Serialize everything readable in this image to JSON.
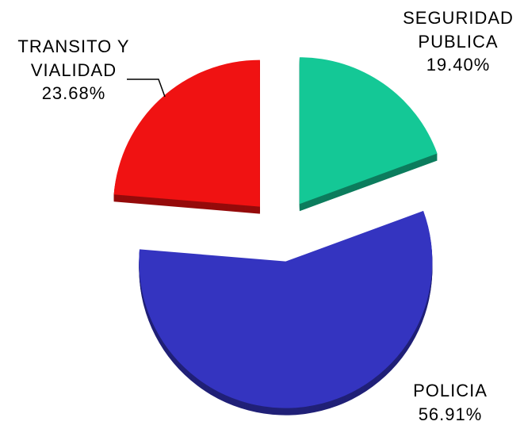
{
  "chart_data": {
    "type": "pie",
    "categories": [
      "SEGURIDAD PUBLICA",
      "POLICIA",
      "TRANSITO Y VIALIDAD"
    ],
    "values": [
      19.4,
      56.91,
      23.68
    ],
    "value_labels": [
      "19.40%",
      "56.91%",
      "23.68%"
    ],
    "colors": [
      "#14c896",
      "#3434c0",
      "#f01212"
    ]
  }
}
